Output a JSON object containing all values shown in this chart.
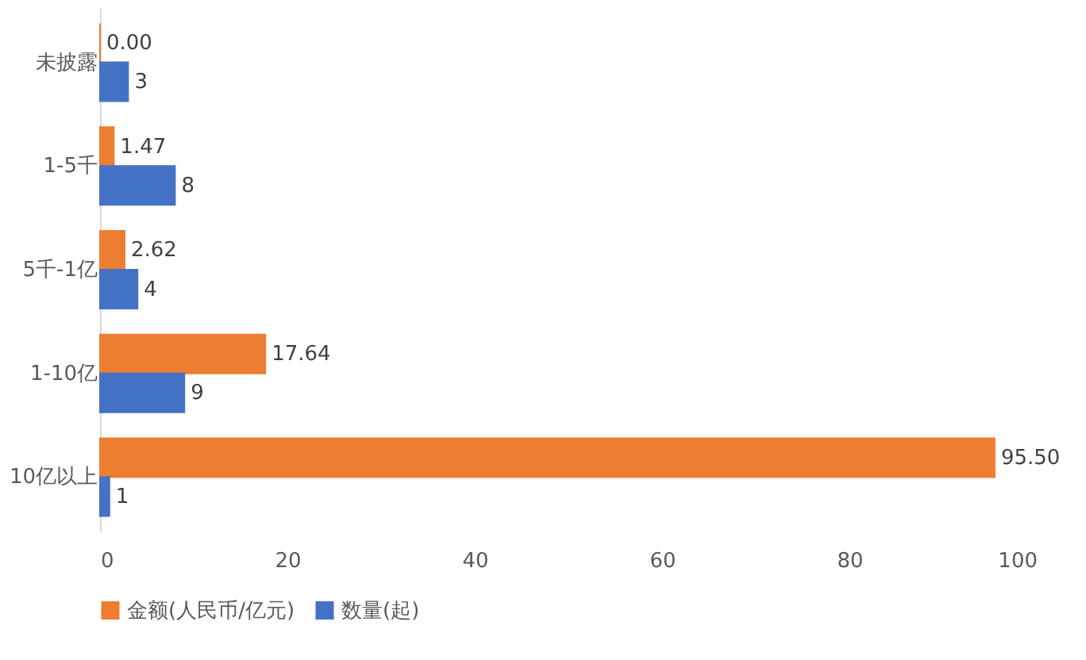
{
  "chart_data": {
    "type": "bar",
    "orientation": "horizontal",
    "categories": [
      "未披露",
      "1-5千",
      "5千-1亿",
      "1-10亿",
      "10亿以上"
    ],
    "series": [
      {
        "name": "金额(人民币/亿元)",
        "color": "#ed7d31",
        "values": [
          0.0,
          1.47,
          2.62,
          17.64,
          95.5
        ],
        "value_labels": [
          "0.00",
          "1.47",
          "2.62",
          "17.64",
          "95.50"
        ]
      },
      {
        "name": "数量(起)",
        "color": "#4472c4",
        "values": [
          3,
          8,
          4,
          9,
          1
        ],
        "value_labels": [
          "3",
          "8",
          "4",
          "9",
          "1"
        ]
      }
    ],
    "xlim": [
      0,
      100
    ],
    "xticks": [
      0,
      20,
      40,
      60,
      80,
      100
    ],
    "grid": false,
    "legend": "bottom"
  }
}
